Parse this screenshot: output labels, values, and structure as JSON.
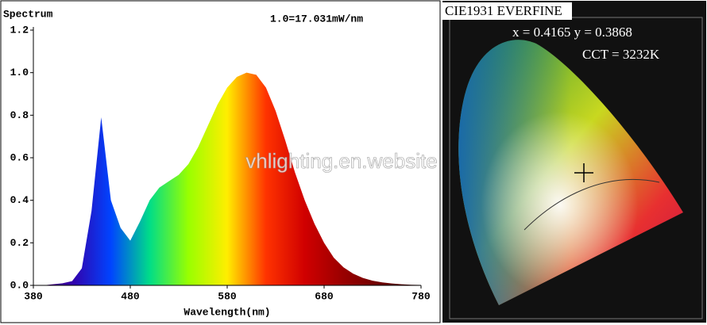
{
  "chart_data": {
    "type": "area",
    "title": "Spectrum",
    "annotation": "1.0=17.031mW/nm",
    "x_label": "Wavelength(nm)",
    "watermark": "vhlighting.en.website",
    "x": [
      380,
      390,
      400,
      410,
      420,
      430,
      440,
      450,
      460,
      470,
      480,
      490,
      500,
      510,
      520,
      530,
      540,
      550,
      560,
      570,
      580,
      590,
      600,
      610,
      620,
      630,
      640,
      650,
      660,
      670,
      680,
      690,
      700,
      710,
      720,
      730,
      740,
      750,
      760,
      770,
      780
    ],
    "values": [
      0,
      0,
      0.005,
      0.01,
      0.02,
      0.08,
      0.35,
      0.79,
      0.4,
      0.27,
      0.21,
      0.3,
      0.4,
      0.46,
      0.49,
      0.52,
      0.57,
      0.65,
      0.75,
      0.85,
      0.93,
      0.98,
      1.0,
      0.99,
      0.93,
      0.82,
      0.68,
      0.53,
      0.4,
      0.29,
      0.2,
      0.13,
      0.085,
      0.055,
      0.035,
      0.022,
      0.014,
      0.009,
      0.005,
      0.003,
      0.002
    ],
    "xlim": [
      380,
      780
    ],
    "xticks": [
      380,
      480,
      580,
      680,
      780
    ],
    "ylim": [
      0,
      1.2
    ],
    "yticks": [
      {
        "value": 0,
        "label": "0.0"
      },
      0.2,
      0.4,
      0.6,
      0.8,
      {
        "value": 1,
        "label": "1.0"
      },
      1.2
    ],
    "gradient_colors": [
      "#4b0066",
      "#3300aa",
      "#0044ff",
      "#00dd88",
      "#99ff00",
      "#ffee00",
      "#ff3300",
      "#d00000",
      "#990000",
      "#6a0000",
      "#4a0000"
    ]
  },
  "cie_panel": {
    "title": "CIE1931 EVERFINE",
    "coordinates": "x = 0.4165 y = 0.3868",
    "cct": "CCT = 3232K"
  }
}
